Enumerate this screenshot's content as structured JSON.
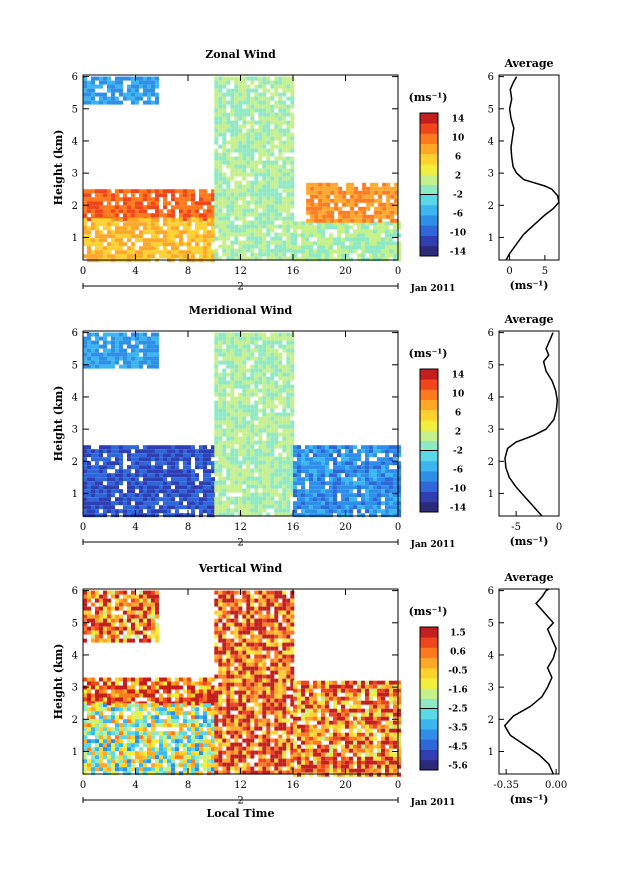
{
  "date_label": "Jan 2011",
  "day_label": "2",
  "xlabel_bottom": "Local Time",
  "colors": {
    "zonal_scale": [
      "#2b2a7a",
      "#2d3fb2",
      "#2f66d8",
      "#2f8fe8",
      "#3bb6f0",
      "#5ad8e6",
      "#8ee9c4",
      "#c6f08c",
      "#f2ee3c",
      "#ffd12e",
      "#ffa726",
      "#ff7a1f",
      "#f0461e",
      "#c41e1e"
    ],
    "mer_scale": [
      "#2b2a7a",
      "#2d3fb2",
      "#2f66d8",
      "#2f8fe8",
      "#3bb6f0",
      "#5ad8e6",
      "#8ee9c4",
      "#c6f08c",
      "#f2ee3c",
      "#ffd12e",
      "#ffa726",
      "#ff7a1f",
      "#f0461e",
      "#c41e1e"
    ],
    "vert_scale": [
      "#2b2a7a",
      "#2d3fb2",
      "#2f66d8",
      "#2f8fe8",
      "#3bb6f0",
      "#5ad8e6",
      "#8ee9c4",
      "#c6f08c",
      "#f2ee3c",
      "#ffd12e",
      "#ffa726",
      "#ff7a1f",
      "#f0461e",
      "#c41e1e"
    ]
  },
  "chart_data": [
    {
      "type": "heatmap",
      "title": "Zonal Wind",
      "ylabel": "Height (km)",
      "xticks": [
        "0",
        "4",
        "8",
        "12",
        "16",
        "20",
        "0"
      ],
      "yticks": [
        "1",
        "2",
        "3",
        "4",
        "5",
        "6"
      ],
      "xlim": [
        0,
        24
      ],
      "ylim": [
        0.3,
        6.05
      ],
      "colorbar_unit": "(ms⁻¹)",
      "colorbar_ticks": [
        "14",
        "10",
        "6",
        "2",
        "-2",
        "-6",
        "-10",
        "-14"
      ],
      "regions": [
        {
          "t0": 0,
          "t1": 5.5,
          "h0": 5.2,
          "h1": 6.0,
          "value": -6
        },
        {
          "t0": 0,
          "t1": 10,
          "h0": 1.6,
          "h1": 2.5,
          "value": 10
        },
        {
          "t0": 0,
          "t1": 10,
          "h0": 0.3,
          "h1": 1.6,
          "value": 6
        },
        {
          "t0": 10,
          "t1": 16,
          "h0": 0.3,
          "h1": 6.0,
          "value": 0
        },
        {
          "t0": 16,
          "t1": 24,
          "h0": 0.3,
          "h1": 1.5,
          "value": 0
        },
        {
          "t0": 17,
          "t1": 24,
          "h0": 1.5,
          "h1": 2.7,
          "value": 8
        }
      ]
    },
    {
      "type": "line",
      "title": "Average",
      "xlabel": "(ms⁻¹)",
      "xticks": [
        "0",
        "5"
      ],
      "yticks": [
        "1",
        "2",
        "3",
        "4",
        "5",
        "6"
      ],
      "xlim": [
        -1.5,
        7
      ],
      "ylim": [
        0.3,
        6.05
      ],
      "x": [
        -0.5,
        0,
        1,
        2,
        3.5,
        5,
        6.2,
        7,
        6.8,
        6,
        5,
        3.5,
        2,
        1,
        0.5,
        0.3,
        0.2,
        0.4,
        0.6,
        0.2,
        0,
        0.3,
        0.1,
        0.5,
        1
      ],
      "y": [
        0.3,
        0.5,
        0.8,
        1.1,
        1.4,
        1.7,
        1.9,
        2.1,
        2.3,
        2.5,
        2.6,
        2.7,
        2.8,
        3.0,
        3.2,
        3.5,
        3.8,
        4.1,
        4.4,
        4.7,
        5.0,
        5.3,
        5.6,
        5.8,
        6.0
      ]
    },
    {
      "type": "heatmap",
      "title": "Meridional Wind",
      "ylabel": "Height (km)",
      "xticks": [
        "0",
        "4",
        "8",
        "12",
        "16",
        "20",
        "0"
      ],
      "yticks": [
        "1",
        "2",
        "3",
        "4",
        "5",
        "6"
      ],
      "xlim": [
        0,
        24
      ],
      "ylim": [
        0.3,
        6.05
      ],
      "colorbar_unit": "(ms⁻¹)",
      "colorbar_ticks": [
        "14",
        "10",
        "6",
        "2",
        "-2",
        "-6",
        "-10",
        "-14"
      ],
      "regions": [
        {
          "t0": 0,
          "t1": 5.5,
          "h0": 5.0,
          "h1": 6.0,
          "value": -6
        },
        {
          "t0": 0,
          "t1": 10,
          "h0": 0.3,
          "h1": 2.5,
          "value": -10
        },
        {
          "t0": 10,
          "t1": 16,
          "h0": 0.3,
          "h1": 6.0,
          "value": 0
        },
        {
          "t0": 16,
          "t1": 24,
          "h0": 0.3,
          "h1": 2.5,
          "value": -7
        }
      ]
    },
    {
      "type": "line",
      "title": "Average",
      "xlabel": "(ms⁻¹)",
      "xticks": [
        "-5",
        "0"
      ],
      "yticks": [
        "1",
        "2",
        "3",
        "4",
        "5",
        "6"
      ],
      "xlim": [
        -7,
        0
      ],
      "ylim": [
        0.3,
        6.05
      ],
      "x": [
        -2,
        -3,
        -4,
        -5,
        -5.8,
        -6.2,
        -6.3,
        -6,
        -5,
        -3,
        -1.5,
        -0.6,
        -0.3,
        -0.2,
        -0.4,
        -0.8,
        -1.5,
        -1.8,
        -1.2,
        -1.5,
        -1,
        -0.7
      ],
      "y": [
        0.3,
        0.6,
        0.9,
        1.2,
        1.5,
        1.8,
        2.1,
        2.4,
        2.6,
        2.8,
        3.0,
        3.3,
        3.6,
        3.9,
        4.2,
        4.5,
        4.8,
        5.1,
        5.3,
        5.5,
        5.8,
        6.0
      ]
    },
    {
      "type": "heatmap",
      "title": "Vertical Wind",
      "ylabel": "Height (km)",
      "xlabel": "Local Time",
      "xticks": [
        "0",
        "4",
        "8",
        "12",
        "16",
        "20",
        "0"
      ],
      "yticks": [
        "1",
        "2",
        "3",
        "4",
        "5",
        "6"
      ],
      "xlim": [
        0,
        24
      ],
      "ylim": [
        0.3,
        6.05
      ],
      "colorbar_unit": "(ms⁻¹)",
      "colorbar_ticks": [
        "1.5",
        "0.6",
        "-0.5",
        "-1.6",
        "-2.5",
        "-3.5",
        "-4.5",
        "-5.6"
      ],
      "regions": [
        {
          "t0": 0,
          "t1": 5.5,
          "h0": 4.5,
          "h1": 6.0,
          "value": 0.2
        },
        {
          "t0": 0,
          "t1": 10,
          "h0": 2.5,
          "h1": 3.3,
          "value": 0.6
        },
        {
          "t0": 0,
          "t1": 10,
          "h0": 0.3,
          "h1": 2.5,
          "value": -1.8
        },
        {
          "t0": 10,
          "t1": 16,
          "h0": 0.3,
          "h1": 6.0,
          "value": 0.6
        },
        {
          "t0": 16,
          "t1": 24,
          "h0": 0.3,
          "h1": 3.2,
          "value": 0.2
        }
      ]
    },
    {
      "type": "line",
      "title": "Average",
      "xlabel": "(ms⁻¹)",
      "xticks": [
        "-0.35",
        "0.00"
      ],
      "yticks": [
        "1",
        "2",
        "3",
        "4",
        "5",
        "6"
      ],
      "xlim": [
        -0.4,
        0.02
      ],
      "ylim": [
        0.3,
        6.05
      ],
      "x": [
        -0.02,
        -0.05,
        -0.12,
        -0.22,
        -0.32,
        -0.36,
        -0.3,
        -0.18,
        -0.1,
        -0.06,
        -0.03,
        -0.06,
        -0.02,
        0.0,
        -0.03,
        -0.06,
        -0.02,
        -0.08,
        -0.14,
        -0.1,
        -0.07,
        -0.05
      ],
      "y": [
        0.3,
        0.6,
        0.9,
        1.2,
        1.5,
        1.8,
        2.1,
        2.4,
        2.7,
        3.0,
        3.3,
        3.6,
        3.9,
        4.2,
        4.5,
        4.8,
        5.0,
        5.3,
        5.6,
        5.8,
        6.0,
        6.05
      ]
    }
  ]
}
